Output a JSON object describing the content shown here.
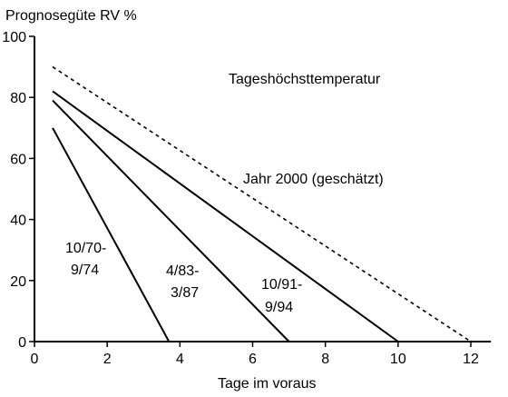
{
  "chart_data": {
    "type": "line",
    "title": "Tageshöchsttemperatur",
    "xlabel": "Tage im voraus",
    "ylabel": "Prognosegüte RV %",
    "xlim": [
      0,
      12.5
    ],
    "ylim": [
      0,
      100
    ],
    "xticks": [
      0,
      2,
      4,
      6,
      8,
      10,
      12
    ],
    "yticks": [
      0,
      20,
      40,
      60,
      80,
      100
    ],
    "grid": false,
    "series": [
      {
        "name": "10/70-\n9/74",
        "style": "solid",
        "x": [
          0.5,
          3.7
        ],
        "y": [
          70,
          0
        ]
      },
      {
        "name": "4/83-\n3/87",
        "style": "solid",
        "x": [
          0.5,
          7.0
        ],
        "y": [
          79,
          0
        ]
      },
      {
        "name": "10/91-\n9/94",
        "style": "solid",
        "x": [
          0.5,
          10.0
        ],
        "y": [
          82,
          0
        ]
      },
      {
        "name": "Jahr 2000 (geschätzt)",
        "style": "dashed",
        "x": [
          0.5,
          12.0
        ],
        "y": [
          90,
          0
        ]
      }
    ]
  },
  "colors": {
    "line": "#000000",
    "background": "#ffffff"
  }
}
